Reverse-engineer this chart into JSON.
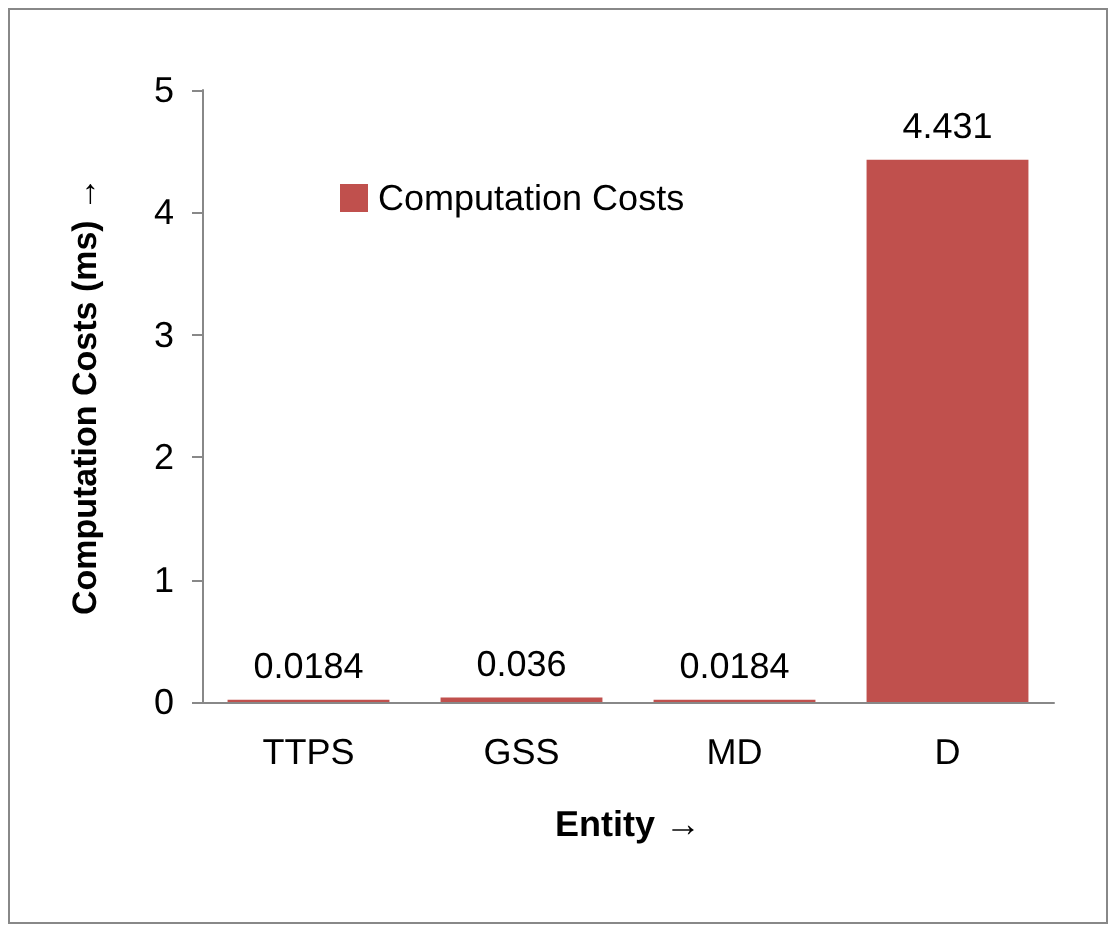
{
  "chart_data": {
    "type": "bar",
    "xlabel": "Entity →",
    "ylabel": "Computation Costs (ms) →",
    "categories": [
      "TTPS",
      "GSS",
      "MD",
      "D"
    ],
    "series": [
      {
        "name": "Computation Costs",
        "color": "#c0504d",
        "values": [
          0.0184,
          0.036,
          0.0184,
          4.431
        ]
      }
    ],
    "ylim": [
      0,
      5
    ],
    "yticks": [
      0,
      1,
      2,
      3,
      4,
      5
    ],
    "grid": false,
    "legend": "top",
    "data_labels": true
  }
}
